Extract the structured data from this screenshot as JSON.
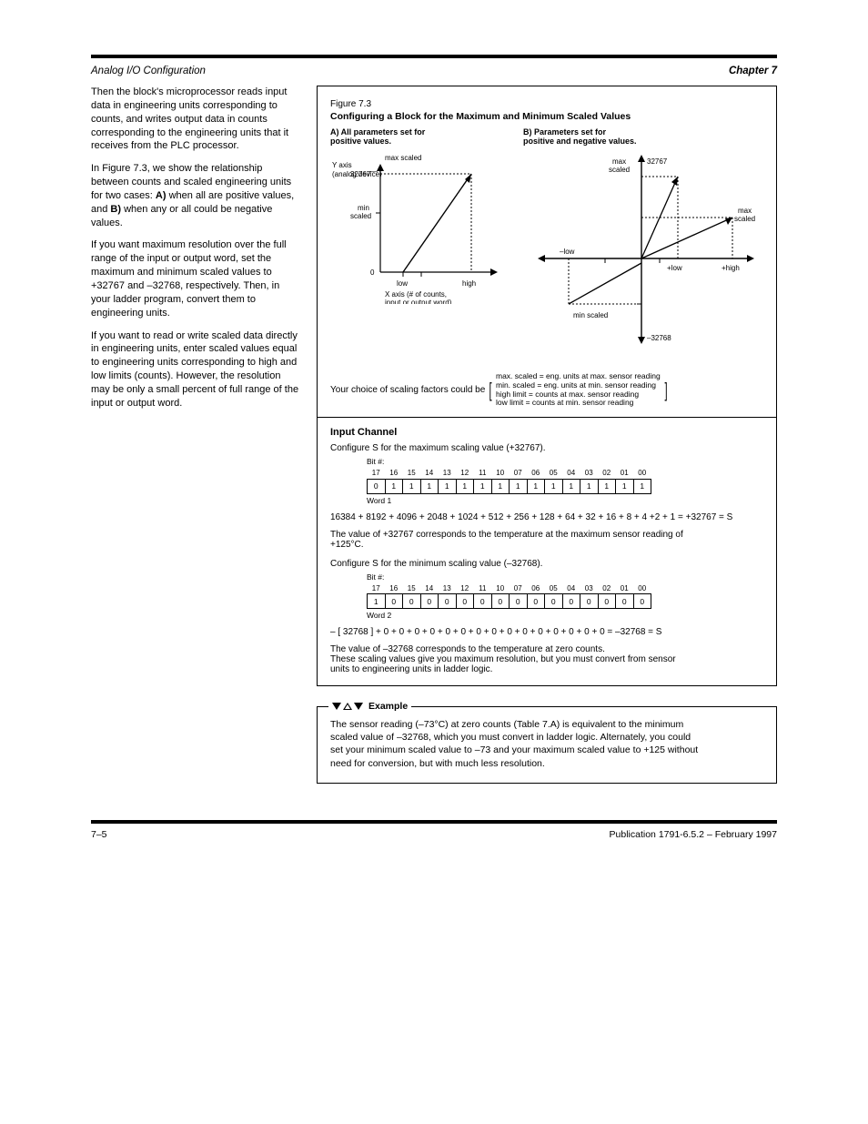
{
  "header": {
    "left": "Analog I/O Configuration",
    "right": "Chapter 7"
  },
  "figure": {
    "label": "Figure 7.3",
    "title": "Configuring a Block for the Maximum and Minimum Scaled Values",
    "graphA": {
      "type": "line",
      "title": "A) All parameters set for\npositive values.",
      "y_axis_label": "Y axis\n(analog device)",
      "x_axis_label": "X axis (# of counts,\ninput or output word)",
      "y_ticks": [
        "32767",
        "min\nscaled",
        "0"
      ],
      "x_ticks": [
        "low",
        "high"
      ],
      "y_top_label": "max scaled",
      "line_color": "#000000",
      "dash_color": "#000000",
      "background": "#ffffff",
      "xlim": [
        0,
        100
      ],
      "ylim": [
        0,
        100
      ],
      "data_line": {
        "x1": 22,
        "y1": 0,
        "x2": 90,
        "y2": 88
      }
    },
    "graphB": {
      "type": "line",
      "title": "B) Parameters set for\npositive and negative values.",
      "y_left_label": "max\nscaled",
      "x_neg_label": "–low",
      "x_pos_labels": [
        "+low",
        "+high"
      ],
      "y_neg_top": "32767",
      "y_pos_bottom": "–32768",
      "min_scaled_label": "min scaled",
      "right_note": "max\nscaled",
      "line_color": "#000000",
      "background": "#ffffff"
    },
    "choice_note_prefix": "Your choice of scaling factors could be",
    "choice_note_items": "max. scaled = eng. units at max. sensor reading\nmin. scaled = eng. units at min. sensor reading\nhigh limit = counts at max. sensor reading\nlow limit = counts at min. sensor reading"
  },
  "input_section": {
    "heading": "Input Channel",
    "intro": "Configure S for the maximum scaling value (+32767).",
    "table1": {
      "bit_header": "Bit #:",
      "bits": [
        "17",
        "16",
        "15",
        "14",
        "13",
        "12",
        "11",
        "10",
        "07",
        "06",
        "05",
        "04",
        "03",
        "02",
        "01",
        "00"
      ],
      "row_label": "Word 1",
      "cells": [
        "0",
        "1",
        "1",
        "1",
        "1",
        "1",
        "1",
        "1",
        "1",
        "1",
        "1",
        "1",
        "1",
        "1",
        "1",
        "1"
      ]
    },
    "eq1": "16384 + 8192 + 4096 + 2048 + 1024 + 512 + 256 + 128 + 64 + 32 + 16 + 8 + 4 +2 + 1 = +32767 = S",
    "mid1": "The value of +32767 corresponds to the temperature at the maximum sensor reading of\n+125°C.",
    "mid2": "Configure S for the minimum scaling value (–32768).",
    "table2": {
      "bit_header": "Bit #:",
      "bits": [
        "17",
        "16",
        "15",
        "14",
        "13",
        "12",
        "11",
        "10",
        "07",
        "06",
        "05",
        "04",
        "03",
        "02",
        "01",
        "00"
      ],
      "row_label": "Word 2",
      "cells": [
        "1",
        "0",
        "0",
        "0",
        "0",
        "0",
        "0",
        "0",
        "0",
        "0",
        "0",
        "0",
        "0",
        "0",
        "0",
        "0"
      ]
    },
    "eq2": "– [ 32768 ] + 0 + 0 + 0 + 0 + 0 + 0 + 0 + 0 + 0 + 0 + 0 + 0 + 0 + 0 + 0 = –32768 = S",
    "mid3": "The value of –32768 corresponds to the temperature at zero counts.\nThese scaling values give you maximum resolution, but you must convert from sensor\nunits to engineering units in ladder logic."
  },
  "example": {
    "legend": "Example",
    "body": "The sensor reading (–73°C) at zero counts (Table 7.A) is equivalent to the minimum\nscaled value of –32768, which you must convert in ladder logic. Alternately, you could\nset your minimum scaled value to –73 and your maximum scaled value to +125 without\nneed for conversion, but with much less resolution."
  },
  "left_text": {
    "p1": "Then the block's microprocessor reads input data in engineering units corresponding to counts, and writes output data in counts corresponding to the engineering units that it receives from the PLC processor.",
    "p2_a": "In Figure 7.3, we show the relationship between counts and scaled engineering units for two cases: ",
    "p2_b_bold": "A)",
    "p2_c": " when all are positive values, and ",
    "p2_d_bold": "B)",
    "p2_e": " when any or all could be negative values.",
    "p3": "If you want maximum resolution over the full range of the input or output word, set the maximum and minimum scaled values to +32767 and –32768, respectively. Then, in your ladder program, convert them to engineering units.",
    "p4": "If you want to read or write scaled data directly in engineering units, enter scaled values equal to engineering units corresponding to high and low limits (counts). However, the resolution may be only a small percent of full range of the input or output word."
  },
  "footer": {
    "pub": "Publication 1791-6.5.2 – February 1997",
    "page": "7–5"
  }
}
